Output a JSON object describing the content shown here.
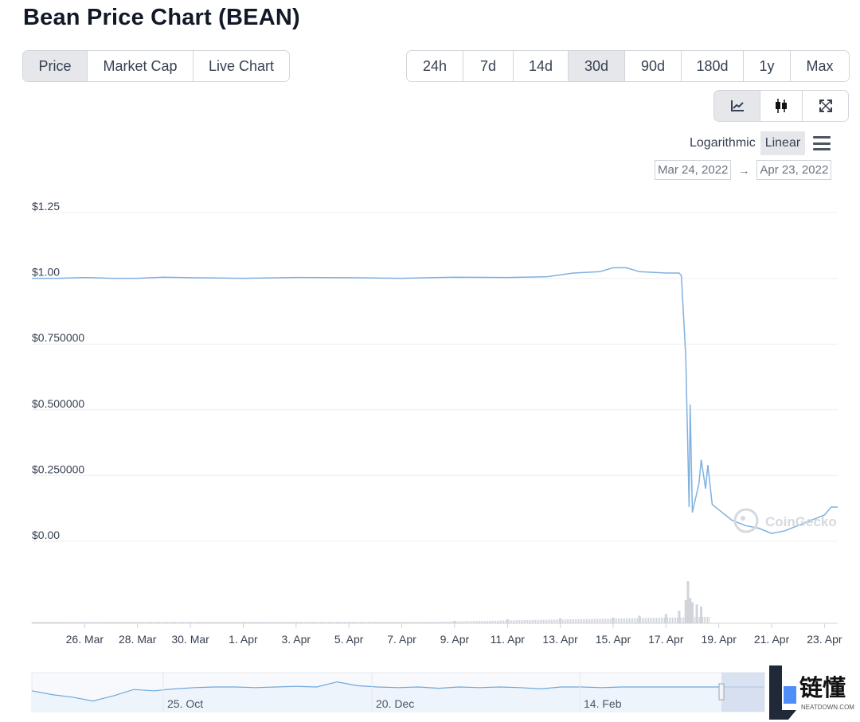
{
  "title": "Bean Price Chart (BEAN)",
  "type_tabs": [
    {
      "label": "Price",
      "active": true
    },
    {
      "label": "Market Cap",
      "active": false
    },
    {
      "label": "Live Chart",
      "active": false
    }
  ],
  "range_tabs": [
    {
      "label": "24h",
      "active": false
    },
    {
      "label": "7d",
      "active": false
    },
    {
      "label": "14d",
      "active": false
    },
    {
      "label": "30d",
      "active": true
    },
    {
      "label": "90d",
      "active": false
    },
    {
      "label": "180d",
      "active": false
    },
    {
      "label": "1y",
      "active": false
    },
    {
      "label": "Max",
      "active": false
    }
  ],
  "view_icons": [
    "line-chart-icon",
    "candlestick-icon",
    "expand-icon"
  ],
  "scale": {
    "logarithmic": "Logarithmic",
    "linear": "Linear",
    "selected": "linear"
  },
  "date_range": {
    "from": "Mar 24, 2022",
    "arrow": "→",
    "to": "Apr 23, 2022"
  },
  "watermark": "CoinGecko",
  "logo": {
    "cn": "链懂",
    "en": "NEATDOWN.COM"
  },
  "colors": {
    "line": "#7fb1e0",
    "volume": "#d1d5db",
    "grid": "#eceff3",
    "nav_line": "#6fa8dc",
    "nav_fill": "#eef4fb",
    "nav_mask": "#cfd9ec",
    "accent_active": "#e5e7eb"
  },
  "chart_data": {
    "type": "line",
    "title": "",
    "xlabel": "",
    "ylabel": "",
    "y_tick_labels": [
      "$0.00",
      "$0.250000",
      "$0.500000",
      "$0.750000",
      "$1.00",
      "$1.25"
    ],
    "ylim": [
      0,
      1.25
    ],
    "xlim": [
      "2022-03-24",
      "2022-04-23T12:00"
    ],
    "x_tick_labels": [
      "26. Mar",
      "28. Mar",
      "30. Mar",
      "1. Apr",
      "3. Apr",
      "5. Apr",
      "7. Apr",
      "9. Apr",
      "11. Apr",
      "13. Apr",
      "15. Apr",
      "17. Apr",
      "19. Apr",
      "21. Apr",
      "23. Apr"
    ],
    "x_tick_dates": [
      "2022-03-26",
      "2022-03-28",
      "2022-03-30",
      "2022-04-01",
      "2022-04-03",
      "2022-04-05",
      "2022-04-07",
      "2022-04-09",
      "2022-04-11",
      "2022-04-13",
      "2022-04-15",
      "2022-04-17",
      "2022-04-19",
      "2022-04-21",
      "2022-04-23"
    ],
    "grid": true,
    "series": [
      {
        "values": [
          [
            "2022-03-24T00:00",
            1.0
          ],
          [
            "2022-03-25T00:00",
            1.0
          ],
          [
            "2022-03-26T00:00",
            1.003
          ],
          [
            "2022-03-27T00:00",
            1.0
          ],
          [
            "2022-03-28T00:00",
            1.0
          ],
          [
            "2022-03-29T00:00",
            1.004
          ],
          [
            "2022-03-30T00:00",
            1.002
          ],
          [
            "2022-04-01T00:00",
            1.0
          ],
          [
            "2022-04-03T00:00",
            1.003
          ],
          [
            "2022-04-05T00:00",
            1.002
          ],
          [
            "2022-04-07T00:00",
            1.0
          ],
          [
            "2022-04-09T00:00",
            1.004
          ],
          [
            "2022-04-11T00:00",
            1.003
          ],
          [
            "2022-04-12T12:00",
            1.006
          ],
          [
            "2022-04-13T12:00",
            1.02
          ],
          [
            "2022-04-14T12:00",
            1.025
          ],
          [
            "2022-04-15T00:00",
            1.04
          ],
          [
            "2022-04-15T12:00",
            1.04
          ],
          [
            "2022-04-16T00:00",
            1.025
          ],
          [
            "2022-04-17T00:00",
            1.02
          ],
          [
            "2022-04-17T12:00",
            1.02
          ],
          [
            "2022-04-17T14:00",
            1.01
          ],
          [
            "2022-04-17T18:00",
            0.7
          ],
          [
            "2022-04-17T21:00",
            0.13
          ],
          [
            "2022-04-17T22:00",
            0.52
          ],
          [
            "2022-04-18T00:00",
            0.11
          ],
          [
            "2022-04-18T06:00",
            0.22
          ],
          [
            "2022-04-18T08:00",
            0.31
          ],
          [
            "2022-04-18T12:00",
            0.2
          ],
          [
            "2022-04-18T14:00",
            0.29
          ],
          [
            "2022-04-18T18:00",
            0.14
          ],
          [
            "2022-04-19T00:00",
            0.12
          ],
          [
            "2022-04-19T12:00",
            0.08
          ],
          [
            "2022-04-20T00:00",
            0.06
          ],
          [
            "2022-04-20T12:00",
            0.05
          ],
          [
            "2022-04-21T00:00",
            0.03
          ],
          [
            "2022-04-21T12:00",
            0.04
          ],
          [
            "2022-04-22T00:00",
            0.06
          ],
          [
            "2022-04-22T12:00",
            0.08
          ],
          [
            "2022-04-23T00:00",
            0.1
          ],
          [
            "2022-04-23T06:00",
            0.13
          ],
          [
            "2022-04-23T12:00",
            0.13
          ]
        ]
      }
    ],
    "volume_bars": [
      [
        "2022-03-24",
        0.01
      ],
      [
        "2022-03-27",
        0.01
      ],
      [
        "2022-03-30",
        0.02
      ],
      [
        "2022-04-03",
        0.02
      ],
      [
        "2022-04-06",
        0.03
      ],
      [
        "2022-04-09",
        0.06
      ],
      [
        "2022-04-11",
        0.1
      ],
      [
        "2022-04-13",
        0.12
      ],
      [
        "2022-04-15",
        0.14
      ],
      [
        "2022-04-16",
        0.18
      ],
      [
        "2022-04-17",
        0.22
      ],
      [
        "2022-04-17T12:00",
        0.3
      ],
      [
        "2022-04-17T18:00",
        0.55
      ],
      [
        "2022-04-17T20:00",
        1.0
      ],
      [
        "2022-04-17T22:00",
        0.6
      ],
      [
        "2022-04-18T00:00",
        0.5
      ],
      [
        "2022-04-18T04:00",
        0.45
      ],
      [
        "2022-04-18T08:00",
        0.4
      ]
    ],
    "navigator": {
      "labels": [
        "25. Oct",
        "20. Dec",
        "14. Feb"
      ],
      "values": [
        0.94,
        0.88,
        0.84,
        0.78,
        0.86,
        0.96,
        0.94,
        0.97,
        0.99,
        1.0,
        1.0,
        0.99,
        1.0,
        1.01,
        1.0,
        1.08,
        1.02,
        1.0,
        0.99,
        1.0,
        0.98,
        1.0,
        0.99,
        1.0,
        0.99,
        0.97,
        1.0,
        1.0,
        0.99,
        1.0,
        1.0,
        1.0,
        1.0,
        1.0,
        1.0,
        1.0,
        1.0
      ]
    }
  }
}
